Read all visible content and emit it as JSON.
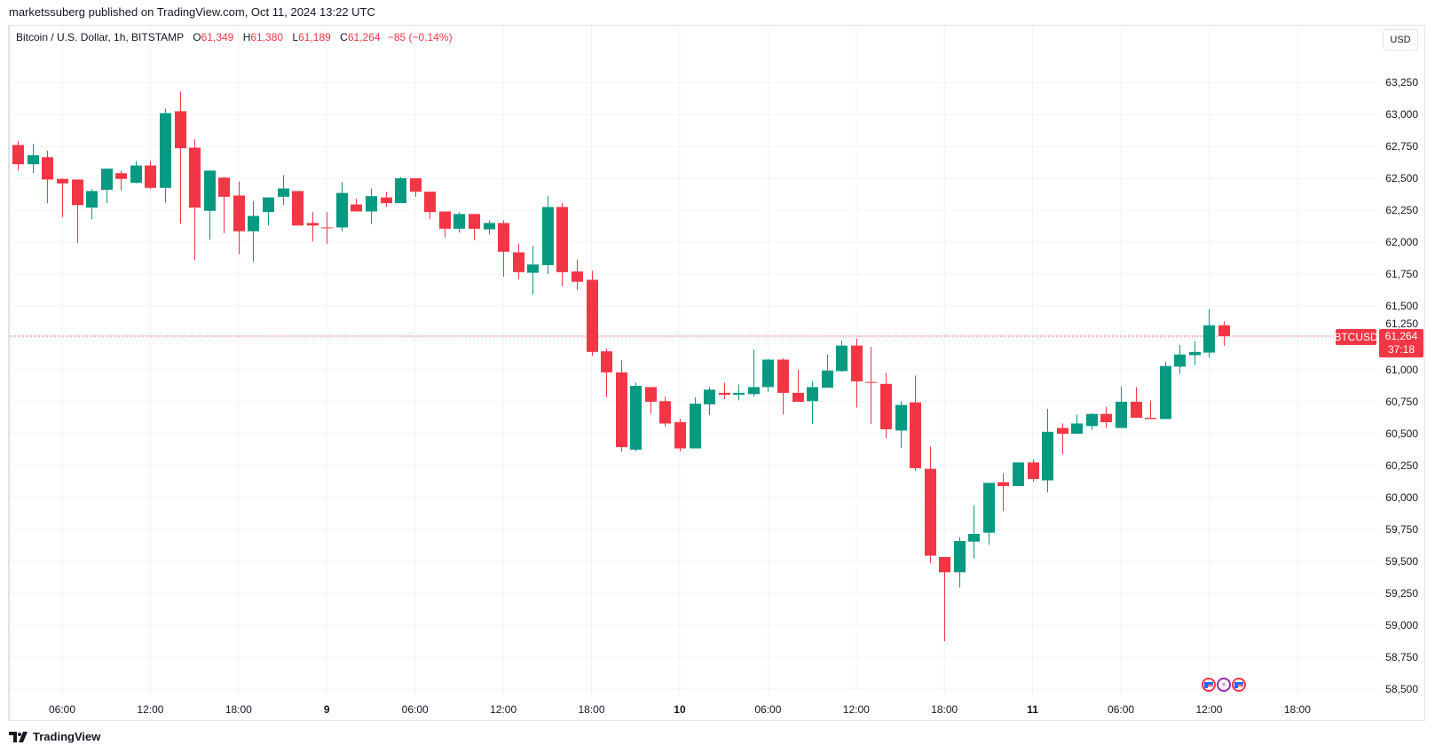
{
  "header": {
    "publisher_line": "marketssuberg published on TradingView.com, Oct 11, 2024 13:22 UTC"
  },
  "legend": {
    "symbol": "Bitcoin / U.S. Dollar, 1h, BITSTAMP",
    "o_label": "O",
    "o": "61,349",
    "h_label": "H",
    "h": "61,380",
    "l_label": "L",
    "l": "61,189",
    "c_label": "C",
    "c": "61,264",
    "change": "−85 (−0.14%)"
  },
  "currency_button": "USD",
  "price_tag": {
    "symbol": "BTCUSD",
    "price": "61,264",
    "countdown": "37:18"
  },
  "footer": {
    "brand": "TradingView"
  },
  "events": [
    "us-flag-icon",
    "lightning-icon",
    "us-flag-icon"
  ],
  "colors": {
    "up": "#089981",
    "down": "#f23645",
    "grid": "#f0f3fa",
    "text": "#131722"
  },
  "chart_data": {
    "type": "candlestick",
    "title": "Bitcoin / U.S. Dollar, 1h, BITSTAMP",
    "ylim": [
      58500,
      63250
    ],
    "grid": true,
    "last_price": 61264,
    "y_ticks": [
      "63,250",
      "63,000",
      "62,750",
      "62,500",
      "62,250",
      "62,000",
      "61,750",
      "61,500",
      "61,250",
      "61,000",
      "60,750",
      "60,500",
      "60,250",
      "60,000",
      "59,750",
      "59,500",
      "59,250",
      "59,000",
      "58,750",
      "58,500"
    ],
    "x_ticks": [
      {
        "label": "06:00",
        "t": "2024-10-08T06:00",
        "bold": false
      },
      {
        "label": "12:00",
        "t": "2024-10-08T12:00",
        "bold": false
      },
      {
        "label": "18:00",
        "t": "2024-10-08T18:00",
        "bold": false
      },
      {
        "label": "9",
        "t": "2024-10-09T00:00",
        "bold": true
      },
      {
        "label": "06:00",
        "t": "2024-10-09T06:00",
        "bold": false
      },
      {
        "label": "12:00",
        "t": "2024-10-09T12:00",
        "bold": false
      },
      {
        "label": "18:00",
        "t": "2024-10-09T18:00",
        "bold": false
      },
      {
        "label": "10",
        "t": "2024-10-10T00:00",
        "bold": true
      },
      {
        "label": "06:00",
        "t": "2024-10-10T06:00",
        "bold": false
      },
      {
        "label": "12:00",
        "t": "2024-10-10T12:00",
        "bold": false
      },
      {
        "label": "18:00",
        "t": "2024-10-10T18:00",
        "bold": false
      },
      {
        "label": "11",
        "t": "2024-10-11T00:00",
        "bold": true
      },
      {
        "label": "06:00",
        "t": "2024-10-11T06:00",
        "bold": false
      },
      {
        "label": "12:00",
        "t": "2024-10-11T12:00",
        "bold": false
      },
      {
        "label": "18:00",
        "t": "2024-10-11T18:00",
        "bold": false
      }
    ],
    "columns": [
      "time",
      "open",
      "high",
      "low",
      "close"
    ],
    "candles": [
      [
        "2024-10-08T03:00",
        62760,
        62790,
        62560,
        62610
      ],
      [
        "2024-10-08T04:00",
        62610,
        62770,
        62540,
        62680
      ],
      [
        "2024-10-08T05:00",
        62665,
        62715,
        62305,
        62490
      ],
      [
        "2024-10-08T06:00",
        62495,
        62500,
        62195,
        62460
      ],
      [
        "2024-10-08T07:00",
        62490,
        62490,
        61995,
        62290
      ],
      [
        "2024-10-08T08:00",
        62270,
        62415,
        62180,
        62400
      ],
      [
        "2024-10-08T09:00",
        62410,
        62575,
        62305,
        62575
      ],
      [
        "2024-10-08T10:00",
        62540,
        62560,
        62405,
        62495
      ],
      [
        "2024-10-08T11:00",
        62465,
        62635,
        62460,
        62600
      ],
      [
        "2024-10-08T12:00",
        62600,
        62635,
        62415,
        62425
      ],
      [
        "2024-10-08T13:00",
        62425,
        63045,
        62310,
        63010
      ],
      [
        "2024-10-08T14:00",
        63025,
        63180,
        62145,
        62735
      ],
      [
        "2024-10-08T15:00",
        62740,
        62805,
        61860,
        62270
      ],
      [
        "2024-10-08T16:00",
        62245,
        62560,
        62020,
        62560
      ],
      [
        "2024-10-08T17:00",
        62505,
        62510,
        62070,
        62355
      ],
      [
        "2024-10-08T18:00",
        62365,
        62475,
        61905,
        62085
      ],
      [
        "2024-10-08T19:00",
        62085,
        62320,
        61845,
        62205
      ],
      [
        "2024-10-08T20:00",
        62235,
        62350,
        62130,
        62350
      ],
      [
        "2024-10-08T21:00",
        62355,
        62525,
        62290,
        62420
      ],
      [
        "2024-10-08T22:00",
        62400,
        62400,
        62130,
        62130
      ],
      [
        "2024-10-08T23:00",
        62150,
        62235,
        62005,
        62130
      ],
      [
        "2024-10-09T00:00",
        62115,
        62235,
        61985,
        62110
      ],
      [
        "2024-10-09T01:00",
        62115,
        62470,
        62085,
        62385
      ],
      [
        "2024-10-09T02:00",
        62295,
        62340,
        62240,
        62240
      ],
      [
        "2024-10-09T03:00",
        62240,
        62420,
        62140,
        62360
      ],
      [
        "2024-10-09T04:00",
        62350,
        62395,
        62275,
        62305
      ],
      [
        "2024-10-09T05:00",
        62305,
        62510,
        62305,
        62500
      ],
      [
        "2024-10-09T06:00",
        62500,
        62500,
        62355,
        62395
      ],
      [
        "2024-10-09T07:00",
        62395,
        62395,
        62180,
        62235
      ],
      [
        "2024-10-09T08:00",
        62240,
        62240,
        62035,
        62105
      ],
      [
        "2024-10-09T09:00",
        62105,
        62235,
        62075,
        62220
      ],
      [
        "2024-10-09T10:00",
        62220,
        62220,
        62015,
        62105
      ],
      [
        "2024-10-09T11:00",
        62100,
        62170,
        62060,
        62150
      ],
      [
        "2024-10-09T12:00",
        62150,
        62170,
        61730,
        61925
      ],
      [
        "2024-10-09T13:00",
        61920,
        61990,
        61710,
        61765
      ],
      [
        "2024-10-09T14:00",
        61760,
        61970,
        61590,
        61825
      ],
      [
        "2024-10-09T15:00",
        61820,
        62360,
        61750,
        62275
      ],
      [
        "2024-10-09T16:00",
        62275,
        62305,
        61655,
        61765
      ],
      [
        "2024-10-09T17:00",
        61770,
        61865,
        61625,
        61690
      ],
      [
        "2024-10-09T18:00",
        61705,
        61775,
        61110,
        61140
      ],
      [
        "2024-10-09T19:00",
        61145,
        61165,
        60785,
        60980
      ],
      [
        "2024-10-09T20:00",
        60980,
        61075,
        60360,
        60395
      ],
      [
        "2024-10-09T21:00",
        60375,
        60900,
        60360,
        60875
      ],
      [
        "2024-10-09T22:00",
        60865,
        60865,
        60655,
        60750
      ],
      [
        "2024-10-09T23:00",
        60755,
        60790,
        60555,
        60580
      ],
      [
        "2024-10-10T00:00",
        60590,
        60615,
        60360,
        60385
      ],
      [
        "2024-10-10T01:00",
        60385,
        60785,
        60385,
        60735
      ],
      [
        "2024-10-10T02:00",
        60730,
        60865,
        60645,
        60845
      ],
      [
        "2024-10-10T03:00",
        60820,
        60900,
        60770,
        60805
      ],
      [
        "2024-10-10T04:00",
        60805,
        60885,
        60760,
        60820
      ],
      [
        "2024-10-10T05:00",
        60810,
        61160,
        60790,
        60865
      ],
      [
        "2024-10-10T06:00",
        60865,
        61085,
        60830,
        61080
      ],
      [
        "2024-10-10T07:00",
        61080,
        61090,
        60650,
        60820
      ],
      [
        "2024-10-10T08:00",
        60820,
        61000,
        60750,
        60750
      ],
      [
        "2024-10-10T09:00",
        60755,
        60910,
        60575,
        60865
      ],
      [
        "2024-10-10T10:00",
        60860,
        61120,
        60860,
        60995
      ],
      [
        "2024-10-10T11:00",
        60990,
        61230,
        60985,
        61190
      ],
      [
        "2024-10-10T12:00",
        61190,
        61245,
        60705,
        60910
      ],
      [
        "2024-10-10T13:00",
        60905,
        61180,
        60575,
        60900
      ],
      [
        "2024-10-10T14:00",
        60890,
        60975,
        60465,
        60535
      ],
      [
        "2024-10-10T15:00",
        60525,
        60755,
        60390,
        60725
      ],
      [
        "2024-10-10T16:00",
        60745,
        60955,
        60210,
        60230
      ],
      [
        "2024-10-10T17:00",
        60225,
        60400,
        59485,
        59545
      ],
      [
        "2024-10-10T18:00",
        59535,
        59535,
        58875,
        59415
      ],
      [
        "2024-10-10T19:00",
        59415,
        59690,
        59295,
        59660
      ],
      [
        "2024-10-10T20:00",
        59655,
        59940,
        59525,
        59715
      ],
      [
        "2024-10-10T21:00",
        59725,
        60115,
        59630,
        60115
      ],
      [
        "2024-10-10T22:00",
        60120,
        60190,
        59895,
        60090
      ],
      [
        "2024-10-10T23:00",
        60090,
        60275,
        60090,
        60275
      ],
      [
        "2024-10-11T00:00",
        60275,
        60300,
        60125,
        60145
      ],
      [
        "2024-10-11T01:00",
        60135,
        60695,
        60040,
        60515
      ],
      [
        "2024-10-11T02:00",
        60545,
        60580,
        60340,
        60500
      ],
      [
        "2024-10-11T03:00",
        60500,
        60650,
        60500,
        60580
      ],
      [
        "2024-10-11T04:00",
        60560,
        60660,
        60530,
        60655
      ],
      [
        "2024-10-11T05:00",
        60655,
        60710,
        60545,
        60590
      ],
      [
        "2024-10-11T06:00",
        60545,
        60870,
        60545,
        60750
      ],
      [
        "2024-10-11T07:00",
        60750,
        60865,
        60625,
        60625
      ],
      [
        "2024-10-11T08:00",
        60625,
        60760,
        60615,
        60615
      ],
      [
        "2024-10-11T09:00",
        60615,
        61065,
        60615,
        61030
      ],
      [
        "2024-10-11T10:00",
        61025,
        61195,
        60970,
        61120
      ],
      [
        "2024-10-11T11:00",
        61115,
        61225,
        61040,
        61140
      ],
      [
        "2024-10-11T12:00",
        61135,
        61475,
        61095,
        61349
      ],
      [
        "2024-10-11T13:00",
        61349,
        61380,
        61189,
        61264
      ]
    ]
  }
}
